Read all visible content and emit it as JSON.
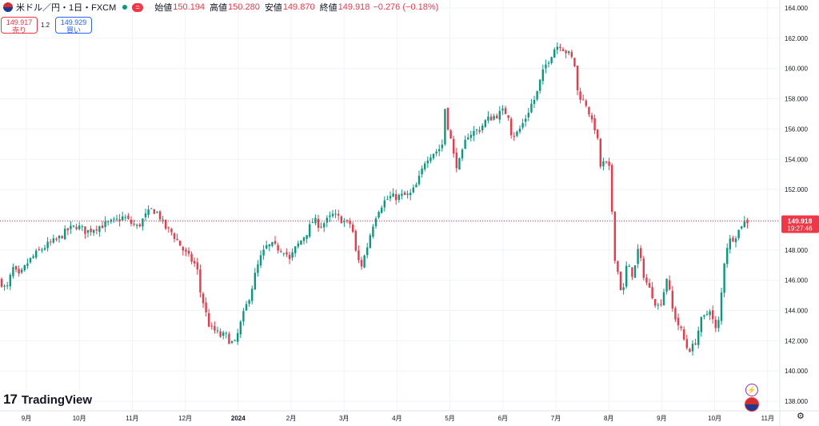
{
  "header": {
    "symbol": "米ドル／円・1日・FXCM",
    "equals_icon": "=",
    "open_label": "始値",
    "open": "150.194",
    "high_label": "高値",
    "high": "150.280",
    "low_label": "安値",
    "low": "149.870",
    "close_label": "終値",
    "close": "149.918",
    "change": "−0.276 (−0.18%)"
  },
  "trade": {
    "sell_price": "149.917",
    "sell_label": "売り",
    "spread": "1.2",
    "buy_price": "149.929",
    "buy_label": "買い"
  },
  "brand": {
    "logo": "17",
    "name": "TradingView"
  },
  "icons": {
    "bolt": "⚡",
    "gear": "⚙"
  },
  "chart_data": {
    "type": "candlestick",
    "price_axis_ticks": [
      "164.000",
      "162.000",
      "160.000",
      "158.000",
      "156.000",
      "154.000",
      "152.000",
      "150.000",
      "148.000",
      "146.000",
      "144.000",
      "142.000",
      "140.000",
      "138.000"
    ],
    "time_axis_ticks": [
      "9月",
      "10月",
      "11月",
      "12月",
      "2024",
      "2月",
      "3月",
      "4月",
      "5月",
      "6月",
      "7月",
      "8月",
      "9月",
      "10月",
      "11月"
    ],
    "last_price": "149.918",
    "countdown": "19:27:46",
    "ylim": [
      137.4,
      164.6
    ],
    "grid": true,
    "up_color": "#089981",
    "down_color": "#f23645",
    "close_path": [
      [
        0,
        146.0
      ],
      [
        8,
        145.3
      ],
      [
        16,
        146.8
      ],
      [
        24,
        146.2
      ],
      [
        35,
        147.2
      ],
      [
        46,
        147.8
      ],
      [
        58,
        148.3
      ],
      [
        72,
        148.7
      ],
      [
        84,
        149.3
      ],
      [
        96,
        149.6
      ],
      [
        108,
        149.2
      ],
      [
        120,
        149.5
      ],
      [
        132,
        149.7
      ],
      [
        144,
        149.9
      ],
      [
        155,
        150.2
      ],
      [
        163,
        149.8
      ],
      [
        172,
        149.5
      ],
      [
        181,
        150.2
      ],
      [
        190,
        150.7
      ],
      [
        198,
        150.4
      ],
      [
        206,
        149.5
      ],
      [
        214,
        149.2
      ],
      [
        222,
        148.6
      ],
      [
        230,
        147.9
      ],
      [
        238,
        147.4
      ],
      [
        246,
        146.9
      ],
      [
        251,
        145.0
      ],
      [
        255,
        144.4
      ],
      [
        260,
        143.2
      ],
      [
        264,
        142.8
      ],
      [
        270,
        142.6
      ],
      [
        276,
        142.3
      ],
      [
        282,
        142.4
      ],
      [
        288,
        141.9
      ],
      [
        294,
        141.8
      ],
      [
        300,
        143.0
      ],
      [
        306,
        144.0
      ],
      [
        314,
        145.3
      ],
      [
        320,
        146.6
      ],
      [
        326,
        147.5
      ],
      [
        333,
        148.2
      ],
      [
        340,
        148.3
      ],
      [
        348,
        148.1
      ],
      [
        356,
        148.0
      ],
      [
        362,
        147.3
      ],
      [
        368,
        148.0
      ],
      [
        376,
        148.6
      ],
      [
        384,
        149.2
      ],
      [
        392,
        150.0
      ],
      [
        400,
        149.6
      ],
      [
        408,
        149.9
      ],
      [
        416,
        150.3
      ],
      [
        424,
        150.1
      ],
      [
        432,
        149.8
      ],
      [
        440,
        149.7
      ],
      [
        444,
        148.0
      ],
      [
        448,
        147.3
      ],
      [
        452,
        147.0
      ],
      [
        458,
        148.0
      ],
      [
        465,
        149.5
      ],
      [
        472,
        150.6
      ],
      [
        480,
        151.2
      ],
      [
        488,
        151.5
      ],
      [
        496,
        151.5
      ],
      [
        504,
        151.6
      ],
      [
        512,
        151.6
      ],
      [
        520,
        152.2
      ],
      [
        526,
        153.0
      ],
      [
        532,
        154.0
      ],
      [
        540,
        154.4
      ],
      [
        548,
        154.6
      ],
      [
        553,
        155.0
      ],
      [
        556,
        157.5
      ],
      [
        560,
        156.2
      ],
      [
        564,
        155.2
      ],
      [
        568,
        154.0
      ],
      [
        572,
        153.5
      ],
      [
        577,
        154.2
      ],
      [
        584,
        155.6
      ],
      [
        592,
        155.8
      ],
      [
        600,
        156.0
      ],
      [
        608,
        156.6
      ],
      [
        616,
        156.8
      ],
      [
        624,
        157.0
      ],
      [
        630,
        157.2
      ],
      [
        636,
        156.9
      ],
      [
        640,
        155.5
      ],
      [
        648,
        155.8
      ],
      [
        656,
        156.6
      ],
      [
        664,
        157.6
      ],
      [
        670,
        158.1
      ],
      [
        676,
        159.3
      ],
      [
        682,
        160.2
      ],
      [
        688,
        160.8
      ],
      [
        694,
        161.4
      ],
      [
        700,
        161.6
      ],
      [
        706,
        161.2
      ],
      [
        712,
        160.9
      ],
      [
        718,
        160.4
      ],
      [
        722,
        158.5
      ],
      [
        728,
        157.9
      ],
      [
        734,
        157.6
      ],
      [
        740,
        156.4
      ],
      [
        746,
        155.9
      ],
      [
        750,
        153.5
      ],
      [
        756,
        153.8
      ],
      [
        762,
        153.3
      ],
      [
        766,
        149.9
      ],
      [
        770,
        146.5
      ],
      [
        774,
        146.6
      ],
      [
        778,
        144.4
      ],
      [
        782,
        146.9
      ],
      [
        786,
        146.8
      ],
      [
        792,
        146.3
      ],
      [
        798,
        148.1
      ],
      [
        804,
        146.5
      ],
      [
        810,
        145.6
      ],
      [
        816,
        145.0
      ],
      [
        822,
        144.2
      ],
      [
        828,
        144.8
      ],
      [
        834,
        146.3
      ],
      [
        840,
        144.2
      ],
      [
        846,
        143.3
      ],
      [
        852,
        142.6
      ],
      [
        858,
        141.6
      ],
      [
        864,
        141.4
      ],
      [
        870,
        142.0
      ],
      [
        876,
        143.3
      ],
      [
        882,
        143.6
      ],
      [
        888,
        144.2
      ],
      [
        894,
        142.6
      ],
      [
        900,
        143.5
      ],
      [
        904,
        146.8
      ],
      [
        910,
        148.5
      ],
      [
        916,
        148.8
      ],
      [
        922,
        149.1
      ],
      [
        928,
        149.8
      ],
      [
        934,
        149.9
      ],
      [
        938,
        149.9
      ]
    ]
  }
}
